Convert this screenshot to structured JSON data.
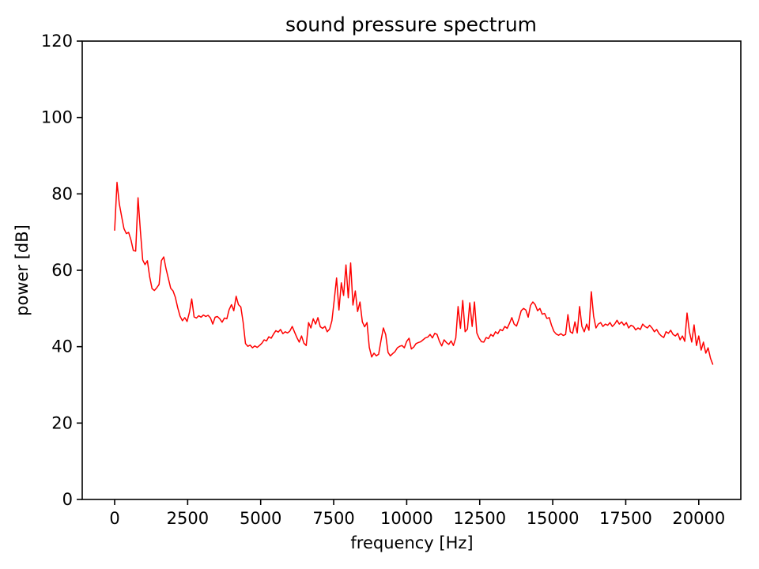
{
  "chart_data": {
    "type": "line",
    "title": "sound pressure spectrum",
    "xlabel": "frequency [Hz]",
    "ylabel": "power [dB]",
    "xlim": [
      -1110,
      21440
    ],
    "ylim": [
      0,
      120
    ],
    "xticks": [
      0,
      2500,
      5000,
      7500,
      10000,
      12500,
      15000,
      17500,
      20000
    ],
    "yticks": [
      0,
      20,
      40,
      60,
      80,
      100,
      120
    ],
    "grid": false,
    "line_color": "#ff0000",
    "series": [
      {
        "name": "sound pressure spectrum",
        "color": "#ff0000",
        "x_start": 0,
        "x_step": 80,
        "values": [
          70.5,
          83.0,
          77.4,
          74.0,
          70.9,
          69.6,
          69.9,
          67.9,
          65.2,
          65.0,
          79.0,
          70.5,
          62.7,
          61.5,
          62.5,
          58.3,
          55.2,
          54.7,
          55.4,
          56.3,
          62.5,
          63.5,
          60.4,
          57.8,
          55.3,
          54.6,
          52.9,
          50.2,
          48.0,
          46.8,
          47.6,
          46.6,
          49.0,
          52.5,
          47.8,
          47.5,
          48.1,
          47.7,
          48.3,
          47.9,
          48.2,
          47.5,
          45.9,
          47.7,
          47.9,
          47.3,
          46.4,
          47.5,
          47.3,
          49.7,
          51.0,
          49.4,
          53.2,
          51.0,
          50.4,
          46.4,
          40.8,
          40.1,
          40.4,
          39.7,
          40.2,
          39.8,
          40.3,
          40.9,
          41.8,
          41.5,
          42.6,
          42.2,
          43.3,
          44.2,
          43.8,
          44.5,
          43.4,
          43.9,
          43.6,
          44.1,
          45.3,
          43.8,
          42.4,
          41.2,
          42.8,
          40.9,
          40.3,
          46.3,
          44.9,
          47.3,
          45.9,
          47.6,
          45.2,
          44.8,
          45.3,
          43.9,
          44.6,
          46.8,
          52.3,
          58.0,
          49.6,
          56.7,
          53.4,
          61.4,
          52.8,
          61.9,
          50.9,
          54.6,
          49.2,
          51.7,
          46.5,
          45.2,
          46.3,
          39.8,
          37.3,
          38.3,
          37.6,
          38.0,
          41.6,
          44.9,
          43.2,
          38.5,
          37.6,
          38.2,
          38.7,
          39.7,
          40.1,
          40.3,
          39.7,
          41.4,
          42.2,
          39.4,
          39.9,
          40.8,
          41.1,
          41.3,
          41.8,
          42.3,
          42.5,
          43.2,
          42.3,
          43.5,
          43.2,
          41.4,
          40.2,
          41.8,
          41.1,
          40.6,
          41.5,
          40.3,
          42.3,
          50.5,
          44.8,
          52.1,
          43.9,
          44.6,
          51.5,
          45.3,
          51.7,
          43.6,
          42.2,
          41.3,
          41.2,
          42.4,
          42.1,
          43.2,
          42.7,
          43.9,
          43.4,
          44.5,
          44.2,
          45.3,
          44.8,
          46.1,
          47.6,
          45.9,
          45.4,
          47.2,
          49.4,
          50.0,
          49.6,
          47.7,
          50.8,
          51.7,
          51.0,
          49.4,
          50.0,
          48.5,
          48.7,
          47.4,
          47.6,
          45.6,
          44.0,
          43.3,
          43.0,
          43.4,
          42.9,
          43.2,
          48.4,
          43.9,
          43.5,
          46.5,
          43.6,
          50.5,
          45.3,
          43.9,
          45.9,
          44.3,
          54.4,
          48.0,
          44.9,
          45.9,
          46.3,
          45.3,
          45.9,
          45.6,
          46.3,
          45.3,
          45.9,
          46.9,
          45.9,
          46.5,
          45.6,
          46.3,
          44.9,
          45.6,
          45.3,
          44.4,
          44.9,
          44.5,
          45.9,
          45.3,
          44.9,
          45.6,
          44.9,
          43.9,
          44.5,
          43.4,
          42.8,
          42.4,
          43.9,
          43.5,
          44.3,
          43.2,
          42.8,
          43.5,
          41.8,
          42.8,
          41.4,
          48.8,
          43.9,
          41.2,
          45.7,
          40.3,
          42.8,
          39.1,
          41.2,
          38.3,
          39.7,
          37.0,
          35.4
        ]
      }
    ]
  }
}
